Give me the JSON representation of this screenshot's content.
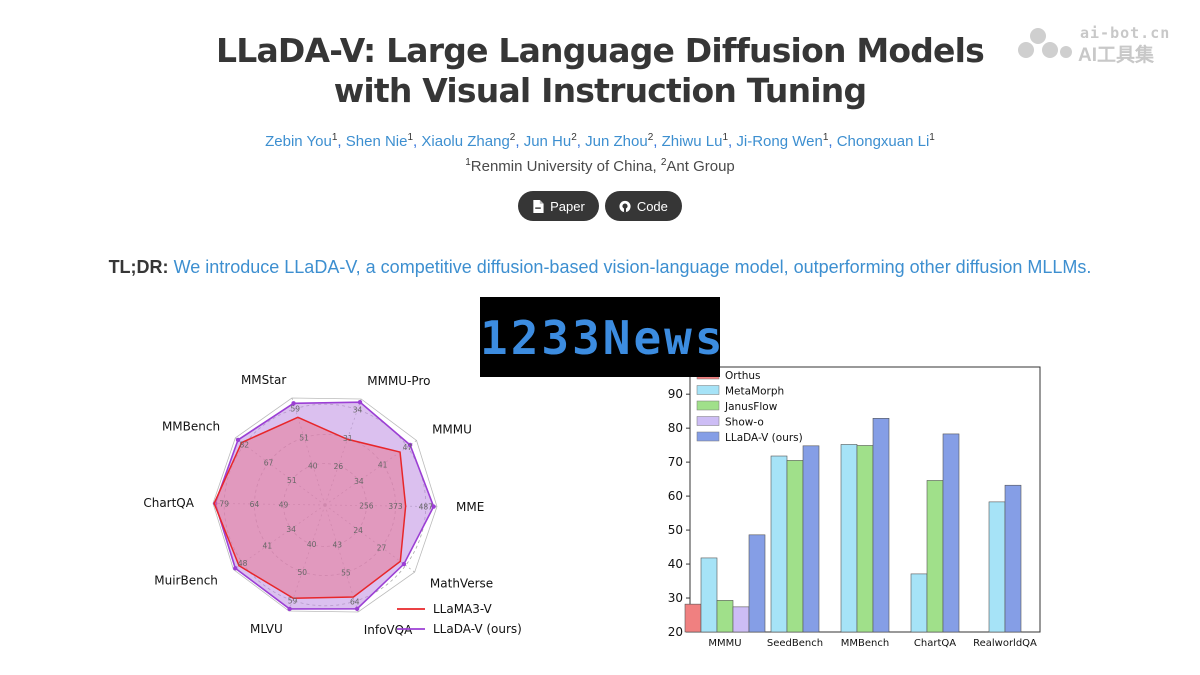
{
  "header": {
    "title_line1": "LLaDA-V: Large Language Diffusion Models",
    "title_line2": "with Visual Instruction Tuning",
    "authors": [
      {
        "name": "Zebin You",
        "sup": "1"
      },
      {
        "name": "Shen Nie",
        "sup": "1"
      },
      {
        "name": "Xiaolu Zhang",
        "sup": "2"
      },
      {
        "name": "Jun Hu",
        "sup": "2"
      },
      {
        "name": "Jun Zhou",
        "sup": "2"
      },
      {
        "name": "Zhiwu Lu",
        "sup": "1"
      },
      {
        "name": "Ji-Rong Wen",
        "sup": "1"
      },
      {
        "name": "Chongxuan Li",
        "sup": "1"
      }
    ],
    "affiliation1_sup": "1",
    "affiliation1": "Renmin University of China, ",
    "affiliation2_sup": "2",
    "affiliation2": "Ant Group",
    "paper_button": "Paper",
    "code_button": "Code"
  },
  "tldr": {
    "label": "TL;DR:",
    "text": "We introduce LLaDA-V, a competitive diffusion-based vision-language model, outperforming other diffusion MLLMs."
  },
  "watermark": {
    "line1": "ai-bot.cn",
    "line2": "AI工具集"
  },
  "overlay": {
    "text": "1233News"
  },
  "icons": {
    "paper": "file-pdf-icon",
    "code": "github-icon",
    "watermark": "ai-bot-logo-icon"
  },
  "colors": {
    "link": "#3d8fd0",
    "button": "#363636"
  },
  "chart_data": [
    {
      "type": "radar",
      "axes": [
        "MMStar",
        "MMMU-Pro",
        "MMMU",
        "MME",
        "MathVerse",
        "InfoVQA",
        "MLVU",
        "MuirBench",
        "ChartQA",
        "MMBench"
      ],
      "ring_labels": [
        [
          "40",
          "51",
          "59"
        ],
        [
          "26",
          "31",
          "34"
        ],
        [
          "34",
          "41",
          "47"
        ],
        [
          "256",
          "373",
          "487"
        ],
        [
          "24",
          "27",
          ""
        ],
        [
          "43",
          "55",
          "64"
        ],
        [
          "40",
          "50",
          "59"
        ],
        [
          "34",
          "41",
          "48"
        ],
        [
          "49",
          "64",
          "79"
        ],
        [
          "51",
          "67",
          "82"
        ]
      ],
      "series": [
        {
          "name": "LLaMA3-V",
          "color": "#e8262a",
          "values": [
            0.82,
            0.62,
            0.82,
            0.72,
            0.84,
            0.86,
            0.88,
            0.94,
            0.99,
            0.93
          ]
        },
        {
          "name": "LLaDA-V (ours)",
          "color": "#9b3fd4",
          "values": [
            0.95,
            0.97,
            0.93,
            0.97,
            0.88,
            0.97,
            0.98,
            0.98,
            0.98,
            0.97
          ]
        }
      ],
      "legend": "bottom-right"
    },
    {
      "type": "bar",
      "categories": [
        "MMMU",
        "SeedBench",
        "MMBench",
        "ChartQA",
        "RealworldQA"
      ],
      "ylim": [
        20,
        98
      ],
      "yticks": [
        "20",
        "30",
        "40",
        "50",
        "60",
        "70",
        "80",
        "90"
      ],
      "series": [
        {
          "name": "Orthus",
          "color": "#f08080",
          "values": [
            28.2,
            null,
            null,
            null,
            null
          ]
        },
        {
          "name": "MetaMorph",
          "color": "#a6e3f7",
          "values": [
            41.8,
            71.8,
            75.2,
            37.1,
            58.3
          ]
        },
        {
          "name": "JanusFlow",
          "color": "#a0e08a",
          "values": [
            29.3,
            70.5,
            74.9,
            64.6,
            null
          ]
        },
        {
          "name": "Show-o",
          "color": "#cdbdf5",
          "values": [
            27.4,
            null,
            null,
            null,
            null
          ]
        },
        {
          "name": "LLaDA-V (ours)",
          "color": "#859ee6",
          "values": [
            48.6,
            74.8,
            82.9,
            78.3,
            63.2
          ]
        }
      ],
      "legend": "top-left"
    }
  ]
}
